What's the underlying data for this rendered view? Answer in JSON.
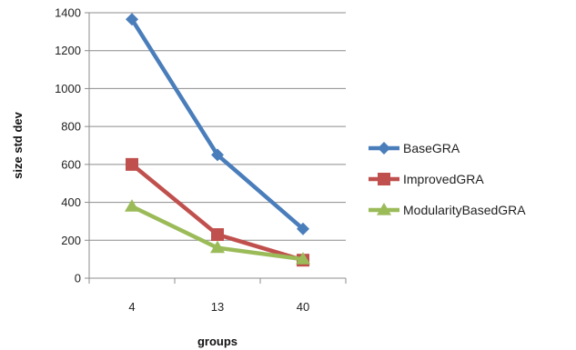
{
  "chart_data": {
    "type": "line",
    "title": "",
    "xlabel": "groups",
    "ylabel": "size std dev",
    "categories": [
      "4",
      "13",
      "40"
    ],
    "ylim": [
      0,
      1400
    ],
    "yticks": [
      0,
      200,
      400,
      600,
      800,
      1000,
      1200,
      1400
    ],
    "grid": "horizontal",
    "legend": "right",
    "series": [
      {
        "name": "BaseGRA",
        "values": [
          1365,
          650,
          260
        ],
        "color": "#4a7ebb",
        "marker": "diamond"
      },
      {
        "name": "ImprovedGRA",
        "values": [
          600,
          230,
          95
        ],
        "color": "#c0504d",
        "marker": "square"
      },
      {
        "name": "ModularityBasedGRA",
        "values": [
          378,
          160,
          100
        ],
        "color": "#9bbb59",
        "marker": "triangle"
      }
    ]
  }
}
